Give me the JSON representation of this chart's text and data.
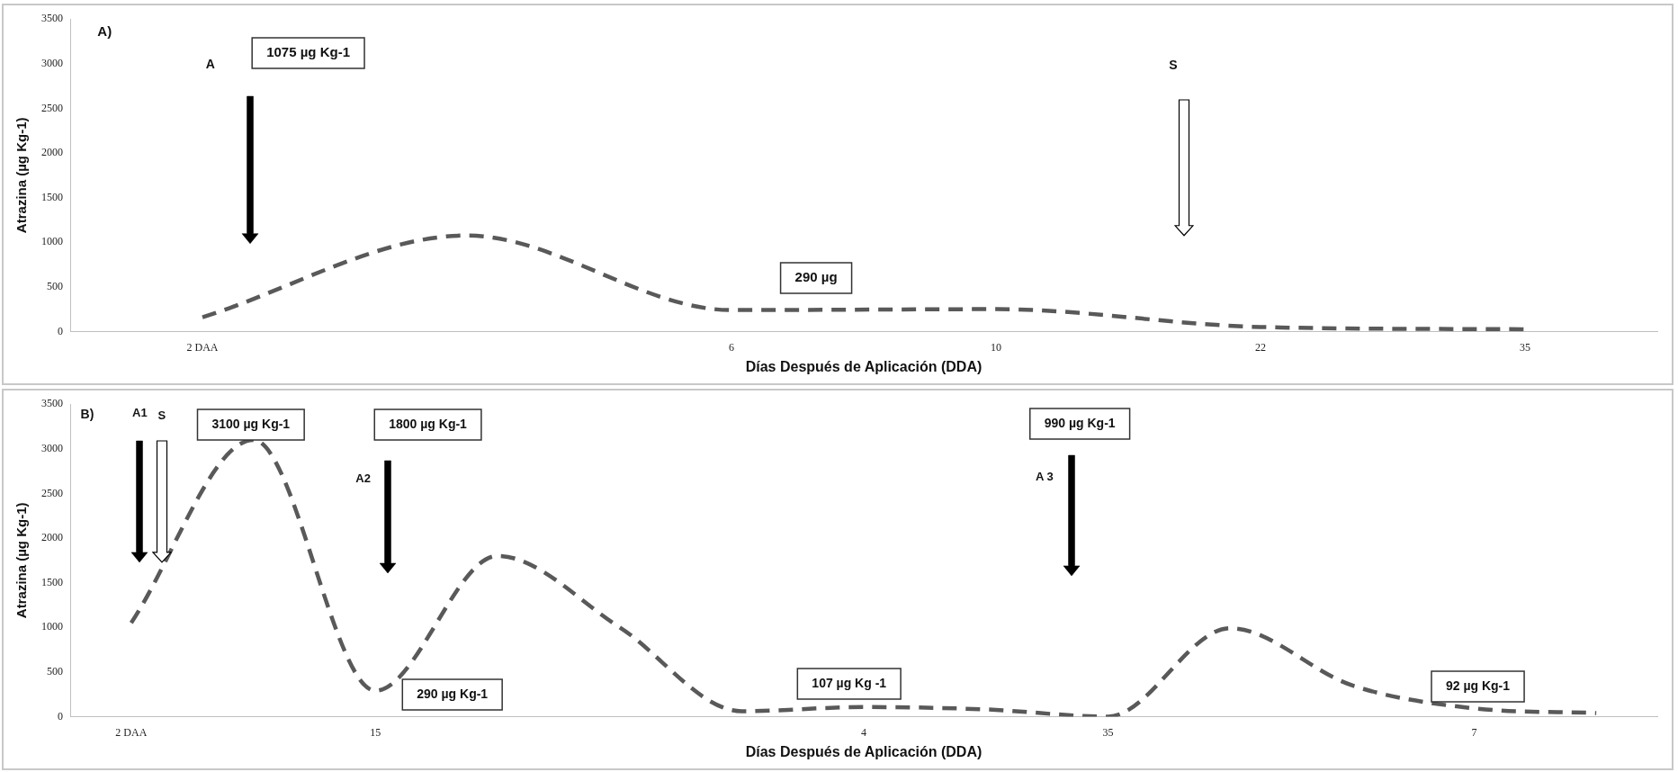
{
  "chart_data": [
    {
      "type": "line",
      "xlabel": "Días Después de Aplicación (DDA)",
      "ylabel": "Atrazina (µg Kg-1)",
      "categories": [
        "2 DAA",
        null,
        "6",
        "10",
        "22",
        "35"
      ],
      "series": [
        {
          "color": "#595959",
          "values": [
            160,
            1075,
            240,
            250,
            50,
            25
          ]
        }
      ],
      "ylim": [
        0,
        3500
      ],
      "yticks": [
        0,
        500,
        1000,
        1500,
        2000,
        2500,
        3000,
        3500
      ],
      "grid": false,
      "legend": false,
      "marker": "none",
      "line_style": "dashed",
      "annotations": [
        "A)",
        "A",
        "1075 µg Kg-1",
        "S",
        "290 µg"
      ]
    },
    {
      "type": "line",
      "xlabel": "Días Después de Aplicación (DDA)",
      "ylabel": "Atrazina (µg Kg-1)",
      "categories": [
        "2 DAA",
        null,
        "15",
        null,
        null,
        null,
        "4",
        null,
        "35",
        null,
        null,
        "7",
        null
      ],
      "series": [
        {
          "color": "#595959",
          "values": [
            1050,
            3100,
            290,
            1800,
            1000,
            60,
            107,
            80,
            0,
            990,
            350,
            92,
            40
          ]
        }
      ],
      "ylim": [
        0,
        3500
      ],
      "yticks": [
        0,
        500,
        1000,
        1500,
        2000,
        2500,
        3000,
        3500
      ],
      "grid": false,
      "legend": false,
      "marker": "none",
      "line_style": "dashed",
      "annotations": [
        "B)",
        "A1",
        "S",
        "3100 µg Kg-1",
        "1800 µg Kg-1",
        "A2",
        "290 µg Kg-1",
        "107 µg Kg -1",
        "A 3",
        "990 µg Kg-1",
        "92 µg Kg-1"
      ]
    }
  ]
}
